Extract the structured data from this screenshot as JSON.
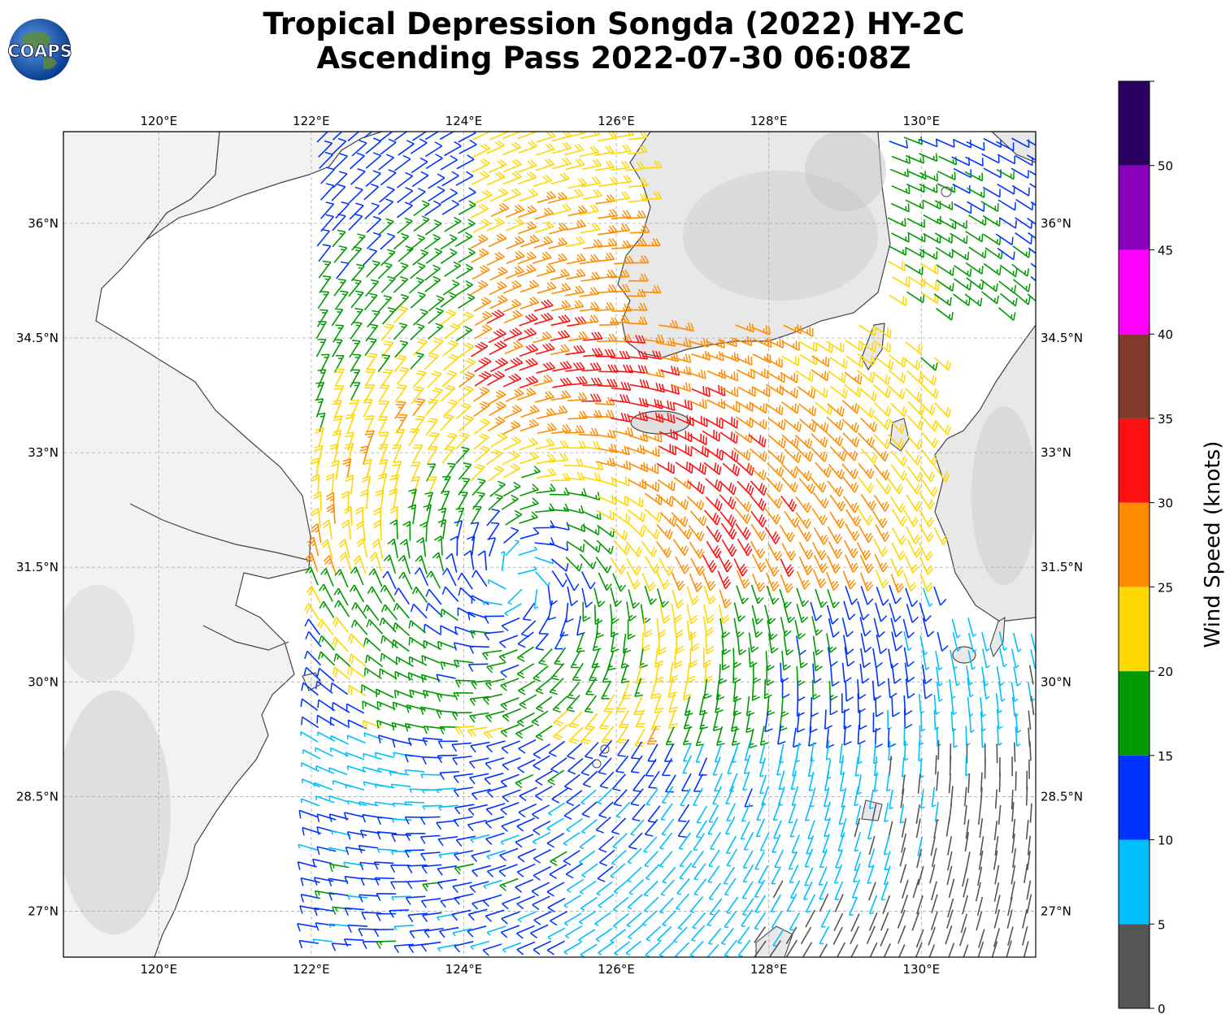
{
  "title": {
    "line1": "Tropical Depression Songda (2022) HY-2C",
    "line2": "Ascending Pass 2022-07-30 06:08Z"
  },
  "logo": {
    "text": "COAPS",
    "icon": "globe-icon"
  },
  "map": {
    "lon_range": [
      118.75,
      131.5
    ],
    "lat_range": [
      26.4,
      37.2
    ],
    "lon_ticks": [
      {
        "value": 120,
        "label": "120°E"
      },
      {
        "value": 122,
        "label": "122°E"
      },
      {
        "value": 124,
        "label": "124°E"
      },
      {
        "value": 126,
        "label": "126°E"
      },
      {
        "value": 128,
        "label": "128°E"
      },
      {
        "value": 130,
        "label": "130°E"
      }
    ],
    "lat_ticks": [
      {
        "value": 36,
        "label": "36°N"
      },
      {
        "value": 34.5,
        "label": "34.5°N"
      },
      {
        "value": 33,
        "label": "33°N"
      },
      {
        "value": 31.5,
        "label": "31.5°N"
      },
      {
        "value": 30,
        "label": "30°N"
      },
      {
        "value": 28.5,
        "label": "28.5°N"
      },
      {
        "value": 27,
        "label": "27°N"
      }
    ],
    "grid": "dashed",
    "storm_center": {
      "lon": 124.7,
      "lat": 31.35
    }
  },
  "colorbar": {
    "label": "Wind Speed (knots)",
    "bounds": [
      0,
      5,
      10,
      15,
      20,
      25,
      30,
      35,
      40,
      45,
      50,
      55
    ],
    "tick_labels": [
      "0",
      "5",
      "10",
      "15",
      "20",
      "25",
      "30",
      "35",
      "40",
      "45",
      "50"
    ],
    "colors": [
      "#555555",
      "#00bfff",
      "#0033ff",
      "#009900",
      "#ffd700",
      "#ff8c00",
      "#ff1010",
      "#80392a",
      "#ff00ff",
      "#8800bb",
      "#2a0060"
    ]
  }
}
